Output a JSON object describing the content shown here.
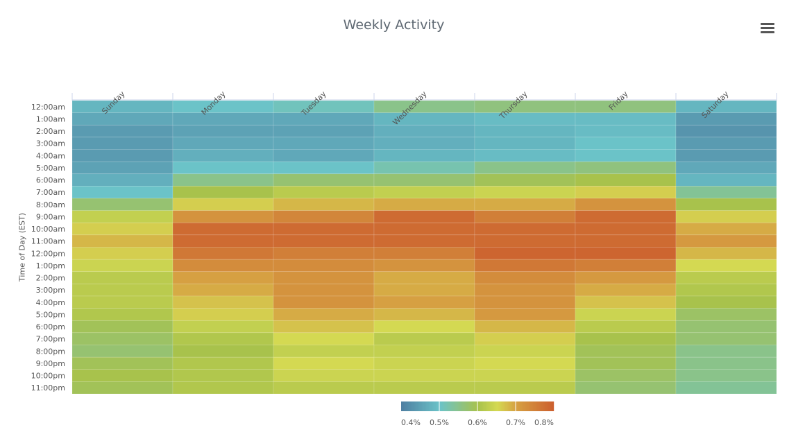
{
  "title": "Weekly Activity",
  "menu_icon": "hamburger-menu-icon",
  "chart_data": {
    "type": "heatmap",
    "title": "Weekly Activity",
    "xlabel": "",
    "ylabel": "Time of Day (EST)",
    "x_categories": [
      "Sunday",
      "Monday",
      "Tuesday",
      "Wednesday",
      "Thursday",
      "Friday",
      "Saturday"
    ],
    "y_categories": [
      "12:00am",
      "1:00am",
      "2:00am",
      "3:00am",
      "4:00am",
      "5:00am",
      "6:00am",
      "7:00am",
      "8:00am",
      "9:00am",
      "10:00am",
      "11:00am",
      "12:00pm",
      "1:00pm",
      "2:00pm",
      "3:00pm",
      "4:00pm",
      "5:00pm",
      "6:00pm",
      "7:00pm",
      "8:00pm",
      "9:00pm",
      "10:00pm",
      "11:00pm"
    ],
    "unit": "%",
    "values": [
      [
        0.48,
        0.5,
        0.51,
        0.55,
        0.56,
        0.56,
        0.48
      ],
      [
        0.46,
        0.46,
        0.46,
        0.48,
        0.49,
        0.49,
        0.44
      ],
      [
        0.44,
        0.45,
        0.45,
        0.47,
        0.48,
        0.49,
        0.43
      ],
      [
        0.44,
        0.46,
        0.46,
        0.47,
        0.48,
        0.5,
        0.44
      ],
      [
        0.44,
        0.47,
        0.46,
        0.48,
        0.49,
        0.5,
        0.44
      ],
      [
        0.45,
        0.5,
        0.5,
        0.52,
        0.55,
        0.56,
        0.46
      ],
      [
        0.47,
        0.55,
        0.57,
        0.57,
        0.59,
        0.6,
        0.48
      ],
      [
        0.5,
        0.6,
        0.62,
        0.63,
        0.64,
        0.66,
        0.54
      ],
      [
        0.57,
        0.66,
        0.68,
        0.69,
        0.69,
        0.72,
        0.6
      ],
      [
        0.63,
        0.72,
        0.74,
        0.78,
        0.75,
        0.78,
        0.66
      ],
      [
        0.66,
        0.78,
        0.78,
        0.78,
        0.78,
        0.78,
        0.69
      ],
      [
        0.68,
        0.78,
        0.78,
        0.78,
        0.78,
        0.78,
        0.71
      ],
      [
        0.66,
        0.76,
        0.75,
        0.75,
        0.79,
        0.79,
        0.68
      ],
      [
        0.64,
        0.73,
        0.73,
        0.72,
        0.76,
        0.75,
        0.65
      ],
      [
        0.62,
        0.7,
        0.72,
        0.69,
        0.73,
        0.71,
        0.62
      ],
      [
        0.62,
        0.69,
        0.72,
        0.69,
        0.72,
        0.69,
        0.61
      ],
      [
        0.62,
        0.67,
        0.72,
        0.7,
        0.72,
        0.67,
        0.6
      ],
      [
        0.61,
        0.66,
        0.69,
        0.68,
        0.71,
        0.64,
        0.58
      ],
      [
        0.59,
        0.63,
        0.67,
        0.65,
        0.68,
        0.62,
        0.57
      ],
      [
        0.58,
        0.61,
        0.65,
        0.62,
        0.66,
        0.6,
        0.57
      ],
      [
        0.57,
        0.6,
        0.63,
        0.63,
        0.64,
        0.59,
        0.55
      ],
      [
        0.59,
        0.61,
        0.65,
        0.64,
        0.65,
        0.59,
        0.55
      ],
      [
        0.6,
        0.61,
        0.64,
        0.64,
        0.64,
        0.58,
        0.55
      ],
      [
        0.59,
        0.61,
        0.62,
        0.62,
        0.62,
        0.57,
        0.54
      ]
    ],
    "color_range": [
      0.4,
      0.8
    ],
    "color_stops": [
      {
        "value": 0.4,
        "color": "#4f80a2"
      },
      {
        "value": 0.5,
        "color": "#6bc3c8"
      },
      {
        "value": 0.6,
        "color": "#a8c24c"
      },
      {
        "value": 0.65,
        "color": "#d4d952"
      },
      {
        "value": 0.7,
        "color": "#d6a042"
      },
      {
        "value": 0.8,
        "color": "#cc5e2e"
      }
    ],
    "legend": {
      "placement": "bottom",
      "ticks": [
        "0.4%",
        "0.5%",
        "0.6%",
        "0.7%",
        "0.8%"
      ]
    },
    "grid": false
  }
}
